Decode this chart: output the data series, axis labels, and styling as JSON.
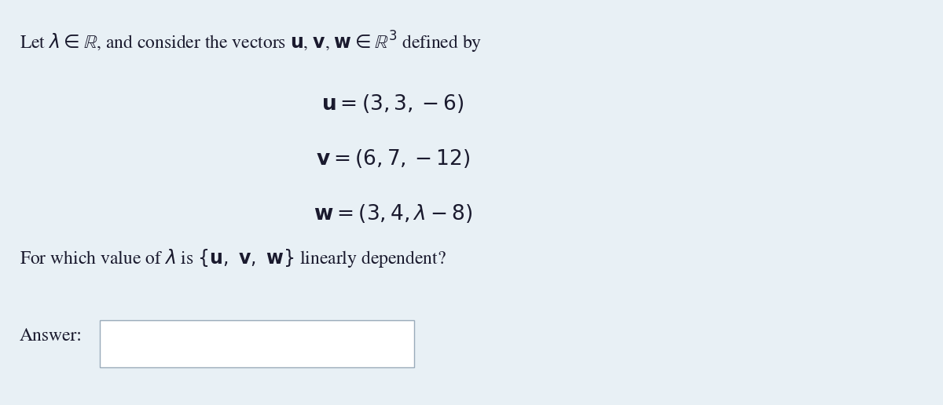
{
  "background_color": "#e8f0f5",
  "text_color": "#1a1a2e",
  "fig_width": 12.0,
  "fig_height": 5.16,
  "line1": "Let $\\lambda \\in \\mathbb{R}$, and consider the vectors $\\mathbf{u}$, $\\mathbf{v}$, $\\mathbf{w} \\in \\mathbb{R}^3$ defined by",
  "line_u": "$\\mathbf{u} = (3, 3, -6)$",
  "line_v": "$\\mathbf{v} = (6, 7, -12)$",
  "line_w": "$\\mathbf{w} = (3, 4, \\lambda - 8)$",
  "question": "For which value of $\\lambda$ is $\\{\\mathbf{u},\\ \\mathbf{v},\\ \\mathbf{w}\\}$ linearly dependent?",
  "answer_label": "Answer:",
  "font_size_main": 17,
  "font_size_equations": 19
}
